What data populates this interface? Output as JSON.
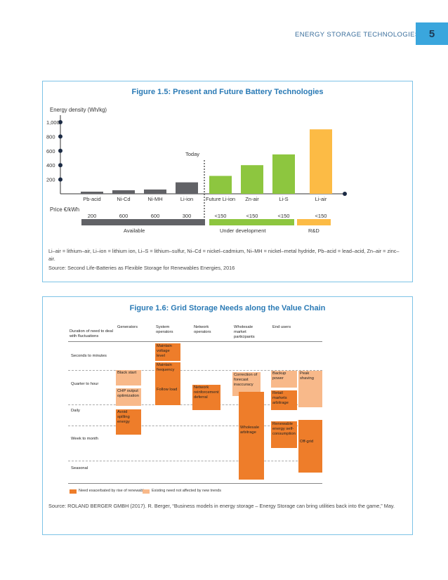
{
  "header": {
    "title": "ENERGY STORAGE TECHNOLOGIES",
    "page_number": "5"
  },
  "figure1": {
    "title": "Figure 1.5: Present and Future Battery Technologies",
    "today_label": "Today",
    "price_label": "Price €/kWh",
    "groups": [
      "Available",
      "Under development",
      "R&D"
    ],
    "chart_data": {
      "type": "bar",
      "ylabel": "Energy density (Wh/kg)",
      "yticks": [
        "200",
        "400",
        "600",
        "800",
        "1,000"
      ],
      "categories": [
        "Pb-acid",
        "Ni-Cd",
        "Ni-MH",
        "Li-ion",
        "Future Li-ion",
        "Zn-air",
        "Li-S",
        "Li-air"
      ],
      "values": [
        30,
        50,
        60,
        160,
        250,
        400,
        550,
        900
      ],
      "prices": [
        "200",
        "600",
        "600",
        "300",
        "<150",
        "<150",
        "<150",
        "<150"
      ],
      "colors": [
        "#616266",
        "#616266",
        "#616266",
        "#616266",
        "#8dc63f",
        "#8dc63f",
        "#8dc63f",
        "#fcbb45"
      ]
    },
    "note": "Li–air = lithium–air, Li–ion = lithium ion, Li–S = lithium–sulfur, Ni–Cd = nickel–cadmium, Ni–MH = nickel–metal hydride, Pb–acid = lead–acid, Zn–air = zinc–air.",
    "source": "Source: Second Life-Batteries as Flexible Storage for Renewables Energies, 2016"
  },
  "figure2": {
    "title": "Figure 1.6: Grid Storage Needs along the Value Chain",
    "row_header": "Duration of need to deal with fluctuations",
    "columns": [
      "Generators",
      "System operators",
      "Network operators",
      "Wholesale market participants",
      "End users"
    ],
    "rows": [
      "Seconds to minutes",
      "Quarter to hour",
      "Daily",
      "Week to month",
      "Seasonal"
    ],
    "cells": {
      "maintain_voltage": "Maintain voltage level",
      "maintain_frequency": "Maintain frequency",
      "black_start": "Black start",
      "chp": "CHP output optimization",
      "follow_load": "Follow load",
      "avoid_spilling": "Avoid spilling energy",
      "network_deferral": "Network reinforcement deferral",
      "correction": "Correction of forecast inaccuracy",
      "wholesale_arbitrage": "Wholesale arbitrage",
      "backup_power": "Backup power",
      "peak_shaving": "Peak shaving",
      "retail_arbitrage": "Retail markets arbitrage",
      "renewable_self": "Renewable energy self-consumption",
      "off_grid": "Off-grid"
    },
    "legend": [
      "Need exacerbated by rise of renewables",
      "Existing need not affected by new trends"
    ],
    "source": "Source: ROLAND BERGER GMBH (2017). R. Berger, “Business models in energy storage – Energy Storage can bring utilities back into the game,” May."
  }
}
